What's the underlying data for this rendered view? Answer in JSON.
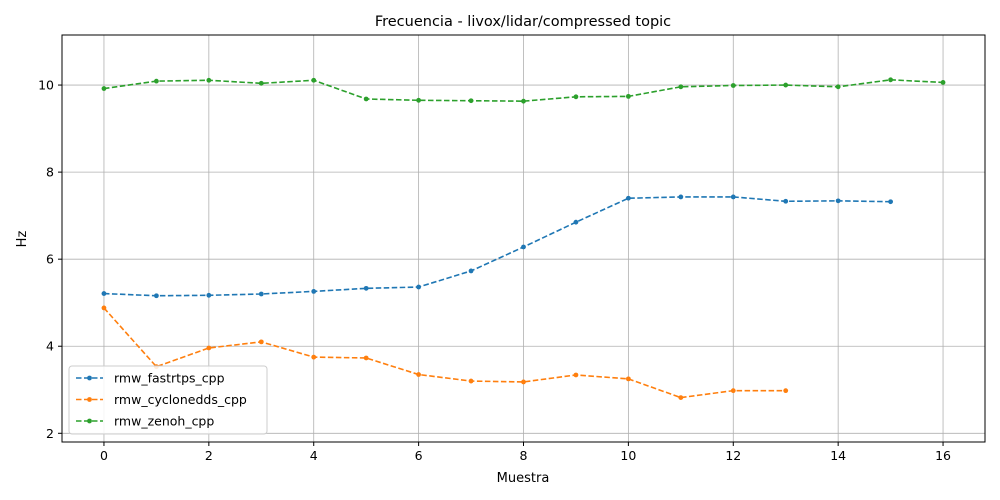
{
  "chart_data": {
    "type": "line",
    "title": "Frecuencia - livox/lidar/compressed topic",
    "xlabel": "Muestra",
    "ylabel": "Hz",
    "xlim": [
      -0.8,
      16.8
    ],
    "ylim": [
      1.8,
      11.15
    ],
    "xticks": [
      0,
      2,
      4,
      6,
      8,
      10,
      12,
      14,
      16
    ],
    "yticks": [
      2,
      4,
      6,
      8,
      10
    ],
    "grid": true,
    "legend_position": "lower-left",
    "line_style": "dashed",
    "marker": "dot",
    "series": [
      {
        "name": "rmw_fastrtps_cpp",
        "color": "#1f77b4",
        "x": [
          0,
          1,
          2,
          3,
          4,
          5,
          6,
          7,
          8,
          9,
          10,
          11,
          12,
          13,
          14,
          15
        ],
        "values": [
          5.21,
          5.16,
          5.17,
          5.2,
          5.26,
          5.33,
          5.36,
          5.73,
          6.28,
          6.85,
          7.4,
          7.43,
          7.43,
          7.33,
          7.34,
          7.32
        ]
      },
      {
        "name": "rmw_cyclonedds_cpp",
        "color": "#ff7f0e",
        "x": [
          0,
          1,
          2,
          3,
          4,
          5,
          6,
          7,
          8,
          9,
          10,
          11,
          12,
          13
        ],
        "values": [
          4.88,
          3.53,
          3.96,
          4.1,
          3.75,
          3.73,
          3.35,
          3.2,
          3.18,
          3.34,
          3.25,
          2.82,
          2.98,
          2.98
        ]
      },
      {
        "name": "rmw_zenoh_cpp",
        "color": "#2ca02c",
        "x": [
          0,
          1,
          2,
          3,
          4,
          5,
          6,
          7,
          8,
          9,
          10,
          11,
          12,
          13,
          14,
          15,
          16
        ],
        "values": [
          9.92,
          10.09,
          10.11,
          10.04,
          10.11,
          9.68,
          9.65,
          9.64,
          9.63,
          9.73,
          9.74,
          9.96,
          9.99,
          10.0,
          9.96,
          10.12,
          10.06
        ]
      }
    ]
  }
}
